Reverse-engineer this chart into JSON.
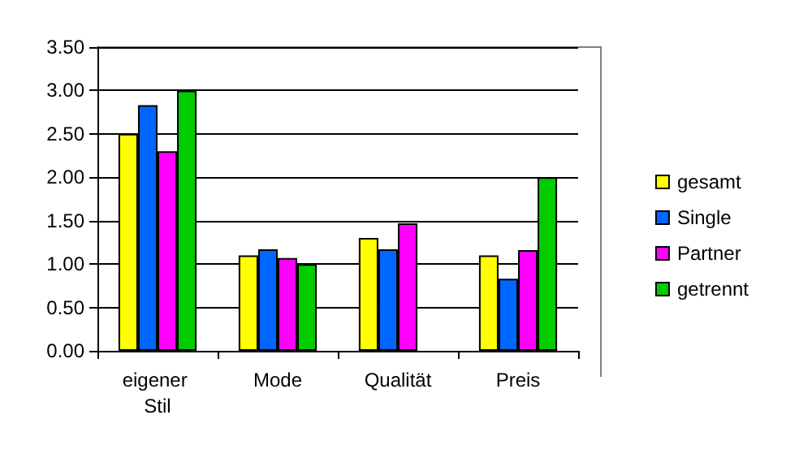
{
  "chart_data": {
    "type": "bar",
    "categories": [
      "eigener Stil",
      "Mode",
      "Qualität",
      "Preis"
    ],
    "series": [
      {
        "name": "gesamt",
        "color": "#ffff00",
        "values": [
          2.5,
          1.1,
          1.3,
          1.1
        ]
      },
      {
        "name": "Single",
        "color": "#0066ff",
        "values": [
          2.83,
          1.17,
          1.17,
          0.83
        ]
      },
      {
        "name": "Partner",
        "color": "#ff00ff",
        "values": [
          2.3,
          1.07,
          1.47,
          1.16
        ]
      },
      {
        "name": "getrennt",
        "color": "#00cc00",
        "values": [
          3.0,
          1.0,
          null,
          2.0
        ]
      }
    ],
    "ylim": [
      0,
      3.5
    ],
    "yticks": [
      {
        "value": 0,
        "label": "0.00"
      },
      {
        "value": 0.5,
        "label": "0.50"
      },
      {
        "value": 1,
        "label": "1.00"
      },
      {
        "value": 1.5,
        "label": "1.50"
      },
      {
        "value": 2,
        "label": "2.00"
      },
      {
        "value": 2.5,
        "label": "2.50"
      },
      {
        "value": 3,
        "label": "3.00"
      },
      {
        "value": 3.5,
        "label": "3.50"
      }
    ],
    "grid": "y",
    "legend": "right"
  }
}
